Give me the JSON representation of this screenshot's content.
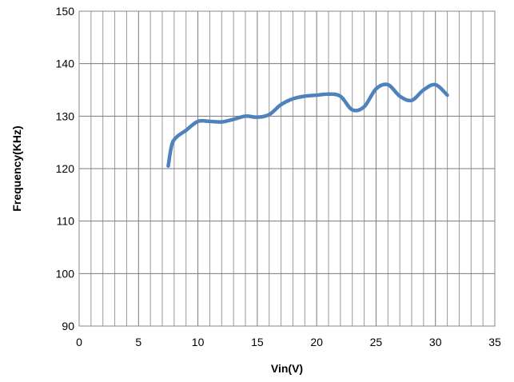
{
  "chart_data": {
    "type": "line",
    "title": "",
    "xlabel": "Vin(V)",
    "ylabel": "Frequency(KHz)",
    "xlim": [
      0,
      35
    ],
    "ylim": [
      90,
      150
    ],
    "x_major_ticks": [
      0,
      5,
      10,
      15,
      20,
      25,
      30,
      35
    ],
    "x_tick_labels": [
      "0",
      "5",
      "10",
      "15",
      "20",
      "25",
      "30",
      "35"
    ],
    "x_minor_step": 1,
    "y_ticks": [
      90,
      100,
      110,
      120,
      130,
      140,
      150
    ],
    "y_tick_labels": [
      "90",
      "100",
      "110",
      "120",
      "130",
      "140",
      "150"
    ],
    "grid": true,
    "legend": "none",
    "series": [
      {
        "color": "#4F81BD",
        "x": [
          7.5,
          7.8,
          8.2,
          9.0,
          10.0,
          11.0,
          12.0,
          13.0,
          14.0,
          15.0,
          16.0,
          17.0,
          18.0,
          19.0,
          20.0,
          21.0,
          22.0,
          23.0,
          24.0,
          25.0,
          26.0,
          27.0,
          28.0,
          29.0,
          30.0,
          31.0
        ],
        "y": [
          120.5,
          124.5,
          126.0,
          127.3,
          129.0,
          129.0,
          128.9,
          129.4,
          130.0,
          129.8,
          130.3,
          132.2,
          133.3,
          133.8,
          134.0,
          134.2,
          133.8,
          131.2,
          131.8,
          135.2,
          136.0,
          133.8,
          133.0,
          135.0,
          136.0,
          134.0
        ]
      }
    ]
  }
}
